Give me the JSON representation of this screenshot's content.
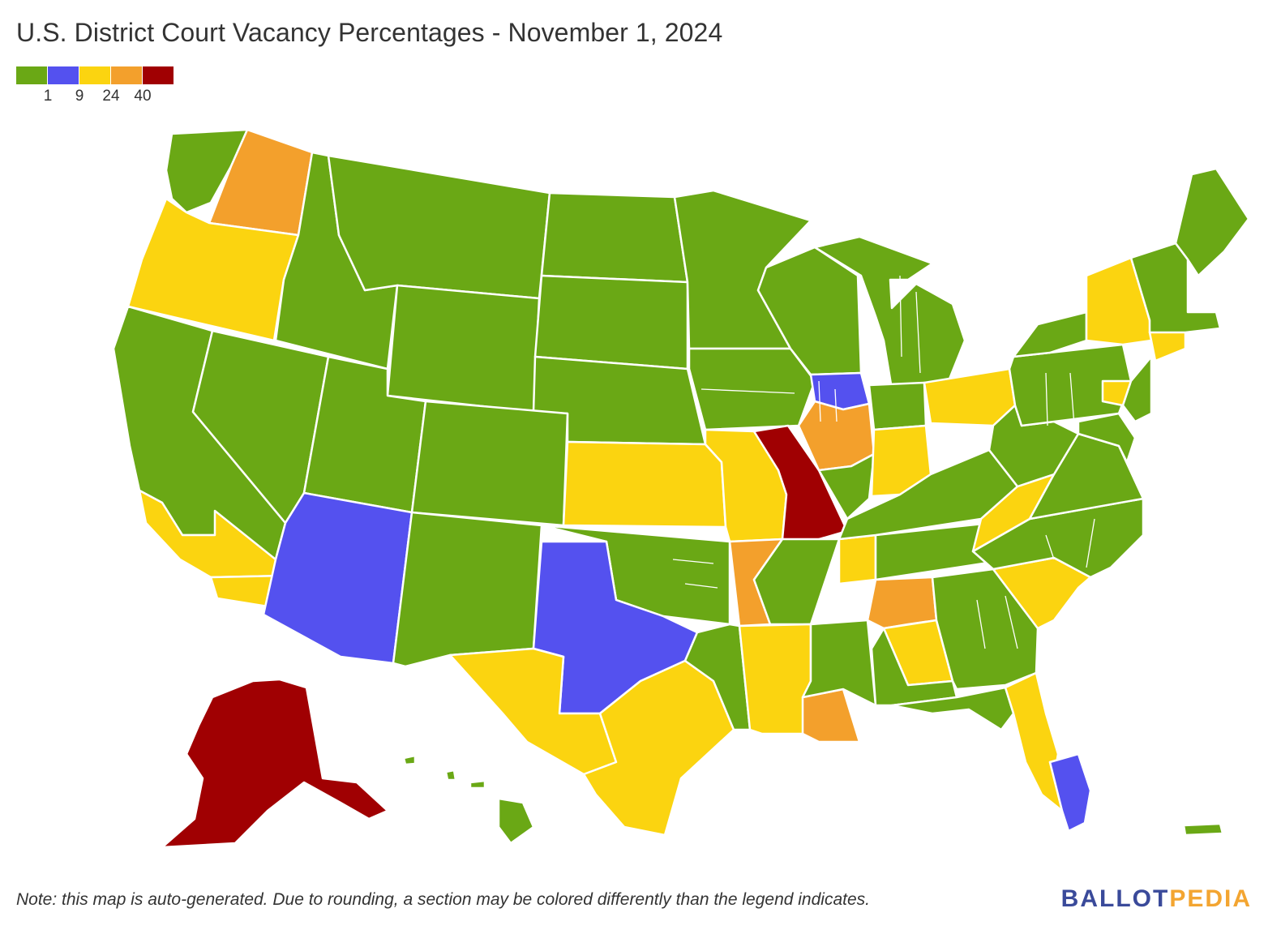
{
  "title": "U.S. District Court Vacancy Percentages - November 1, 2024",
  "legend": {
    "colors": [
      "#6aa815",
      "#5451ef",
      "#fbd410",
      "#f3a02c",
      "#a00002"
    ],
    "labels": [
      "1",
      "9",
      "24",
      "40"
    ]
  },
  "note": "Note: this map is auto-generated. Due to rounding, a section may be colored differently than the legend indicates.",
  "brand": {
    "part1": "BALLOT",
    "part2": "PEDIA"
  },
  "map": {
    "regions": [
      {
        "name": "Western Washington",
        "bucket": 0
      },
      {
        "name": "Eastern Washington",
        "bucket": 3
      },
      {
        "name": "Oregon",
        "bucket": 2
      },
      {
        "name": "Idaho",
        "bucket": 0
      },
      {
        "name": "Montana",
        "bucket": 0
      },
      {
        "name": "Wyoming",
        "bucket": 0
      },
      {
        "name": "North Dakota",
        "bucket": 0
      },
      {
        "name": "South Dakota",
        "bucket": 0
      },
      {
        "name": "Nebraska",
        "bucket": 0
      },
      {
        "name": "Minnesota",
        "bucket": 0
      },
      {
        "name": "Iowa",
        "bucket": 0
      },
      {
        "name": "Wisconsin",
        "bucket": 0
      },
      {
        "name": "Michigan",
        "bucket": 0
      },
      {
        "name": "Northern California",
        "bucket": 0
      },
      {
        "name": "Central California",
        "bucket": 2
      },
      {
        "name": "Southern California",
        "bucket": 2
      },
      {
        "name": "Nevada",
        "bucket": 0
      },
      {
        "name": "Utah",
        "bucket": 0
      },
      {
        "name": "Colorado",
        "bucket": 0
      },
      {
        "name": "Arizona",
        "bucket": 1
      },
      {
        "name": "New Mexico",
        "bucket": 0
      },
      {
        "name": "Kansas",
        "bucket": 2
      },
      {
        "name": "Western Missouri",
        "bucket": 2
      },
      {
        "name": "Eastern Missouri",
        "bucket": 4
      },
      {
        "name": "Northern Illinois",
        "bucket": 1
      },
      {
        "name": "Central Illinois",
        "bucket": 3
      },
      {
        "name": "Southern Illinois",
        "bucket": 0
      },
      {
        "name": "Northern Indiana",
        "bucket": 0
      },
      {
        "name": "Southern Indiana",
        "bucket": 2
      },
      {
        "name": "Ohio",
        "bucket": 2
      },
      {
        "name": "Oklahoma",
        "bucket": 0
      },
      {
        "name": "Western Arkansas",
        "bucket": 3
      },
      {
        "name": "Eastern Arkansas",
        "bucket": 0
      },
      {
        "name": "Northern Texas",
        "bucket": 1
      },
      {
        "name": "Western Texas",
        "bucket": 2
      },
      {
        "name": "Southern Texas",
        "bucket": 2
      },
      {
        "name": "Eastern Texas",
        "bucket": 0
      },
      {
        "name": "Western Louisiana",
        "bucket": 2
      },
      {
        "name": "Eastern Louisiana",
        "bucket": 3
      },
      {
        "name": "Mississippi",
        "bucket": 0
      },
      {
        "name": "Western Tennessee",
        "bucket": 2
      },
      {
        "name": "Tennessee",
        "bucket": 0
      },
      {
        "name": "Kentucky",
        "bucket": 0
      },
      {
        "name": "Northern Alabama",
        "bucket": 3
      },
      {
        "name": "Central Alabama",
        "bucket": 2
      },
      {
        "name": "Southern Alabama",
        "bucket": 0
      },
      {
        "name": "Georgia",
        "bucket": 0
      },
      {
        "name": "Northern Florida",
        "bucket": 0
      },
      {
        "name": "Middle Florida",
        "bucket": 2
      },
      {
        "name": "Southern Florida",
        "bucket": 1
      },
      {
        "name": "South Carolina",
        "bucket": 2
      },
      {
        "name": "North Carolina",
        "bucket": 0
      },
      {
        "name": "Western Virginia",
        "bucket": 2
      },
      {
        "name": "Eastern Virginia",
        "bucket": 0
      },
      {
        "name": "West Virginia",
        "bucket": 0
      },
      {
        "name": "Pennsylvania",
        "bucket": 0
      },
      {
        "name": "Eastern Pennsylvania",
        "bucket": 2
      },
      {
        "name": "Western New York",
        "bucket": 0
      },
      {
        "name": "New York",
        "bucket": 2
      },
      {
        "name": "New Jersey",
        "bucket": 0
      },
      {
        "name": "Maryland",
        "bucket": 0
      },
      {
        "name": "Connecticut",
        "bucket": 2
      },
      {
        "name": "New England",
        "bucket": 0
      },
      {
        "name": "Maine",
        "bucket": 0
      },
      {
        "name": "Alaska",
        "bucket": 4
      },
      {
        "name": "Hawaii",
        "bucket": 0
      },
      {
        "name": "Puerto Rico",
        "bucket": 0
      }
    ]
  }
}
